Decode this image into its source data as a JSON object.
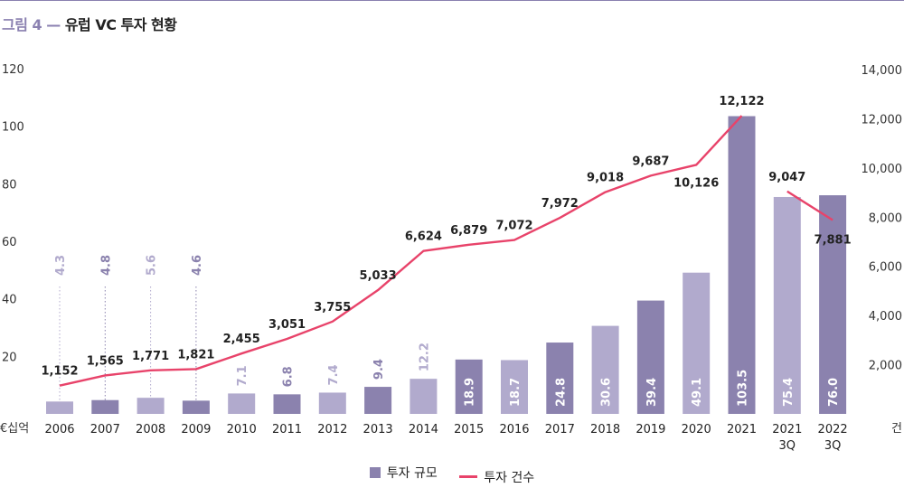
{
  "figure": {
    "number": "그림 4",
    "separator": "—",
    "title": "유럽 VC 투자 현황"
  },
  "colors": {
    "bar_dark": "#8b82ae",
    "bar_light": "#b1aacd",
    "line": "#e8436a",
    "label_dark": "#8b82ae",
    "label_light": "#b1aacd"
  },
  "chart_data": {
    "type": "bar",
    "categories": [
      "2006",
      "2007",
      "2008",
      "2009",
      "2010",
      "2011",
      "2012",
      "2013",
      "2014",
      "2015",
      "2016",
      "2017",
      "2018",
      "2019",
      "2020",
      "2021",
      "2021\n3Q",
      "2022\n3Q"
    ],
    "left_axis": {
      "unit": "€십억",
      "ticks": [
        20,
        40,
        60,
        80,
        100,
        120
      ],
      "ylim": [
        0,
        120
      ]
    },
    "right_axis": {
      "unit": "건",
      "ticks": [
        "2,000",
        "4,000",
        "6,000",
        "8,000",
        "10,000",
        "12,000",
        "14,000"
      ],
      "ylim": [
        0,
        14000
      ]
    },
    "series": [
      {
        "name": "투자 규모",
        "type": "bar",
        "values": [
          4.3,
          4.8,
          5.6,
          4.6,
          7.1,
          6.8,
          7.4,
          9.4,
          12.2,
          18.9,
          18.7,
          24.8,
          30.6,
          39.4,
          49.1,
          103.5,
          75.4,
          76.0
        ],
        "labels": [
          "4.3",
          "4.8",
          "5.6",
          "4.6",
          "7.1",
          "6.8",
          "7.4",
          "9.4",
          "12.2",
          "18.9",
          "18.7",
          "24.8",
          "30.6",
          "39.4",
          "49.1",
          "103.5",
          "75.4",
          "76.0"
        ],
        "shade": [
          "light",
          "dark",
          "light",
          "dark",
          "light",
          "dark",
          "light",
          "dark",
          "light",
          "dark",
          "light",
          "dark",
          "light",
          "dark",
          "light",
          "dark",
          "light",
          "dark"
        ]
      },
      {
        "name": "투자 건수",
        "type": "line",
        "values": [
          1152,
          1565,
          1771,
          1821,
          2455,
          3051,
          3755,
          5033,
          6624,
          6879,
          7072,
          7972,
          9018,
          9687,
          10126,
          12122,
          9047,
          7881
        ],
        "labels": [
          "1,152",
          "1,565",
          "1,771",
          "1,821",
          "2,455",
          "3,051",
          "3,755",
          "5,033",
          "6,624",
          "6,879",
          "7,072",
          "7,972",
          "9,018",
          "9,687",
          "10,126",
          "12,122",
          "9,047",
          "7,881"
        ],
        "segments": [
          [
            0,
            15
          ],
          [
            16,
            17
          ]
        ]
      }
    ],
    "grid": false,
    "legend_position": "bottom-center"
  },
  "legend": {
    "bar_label": "투자 규모",
    "line_label": "투자 건수"
  }
}
